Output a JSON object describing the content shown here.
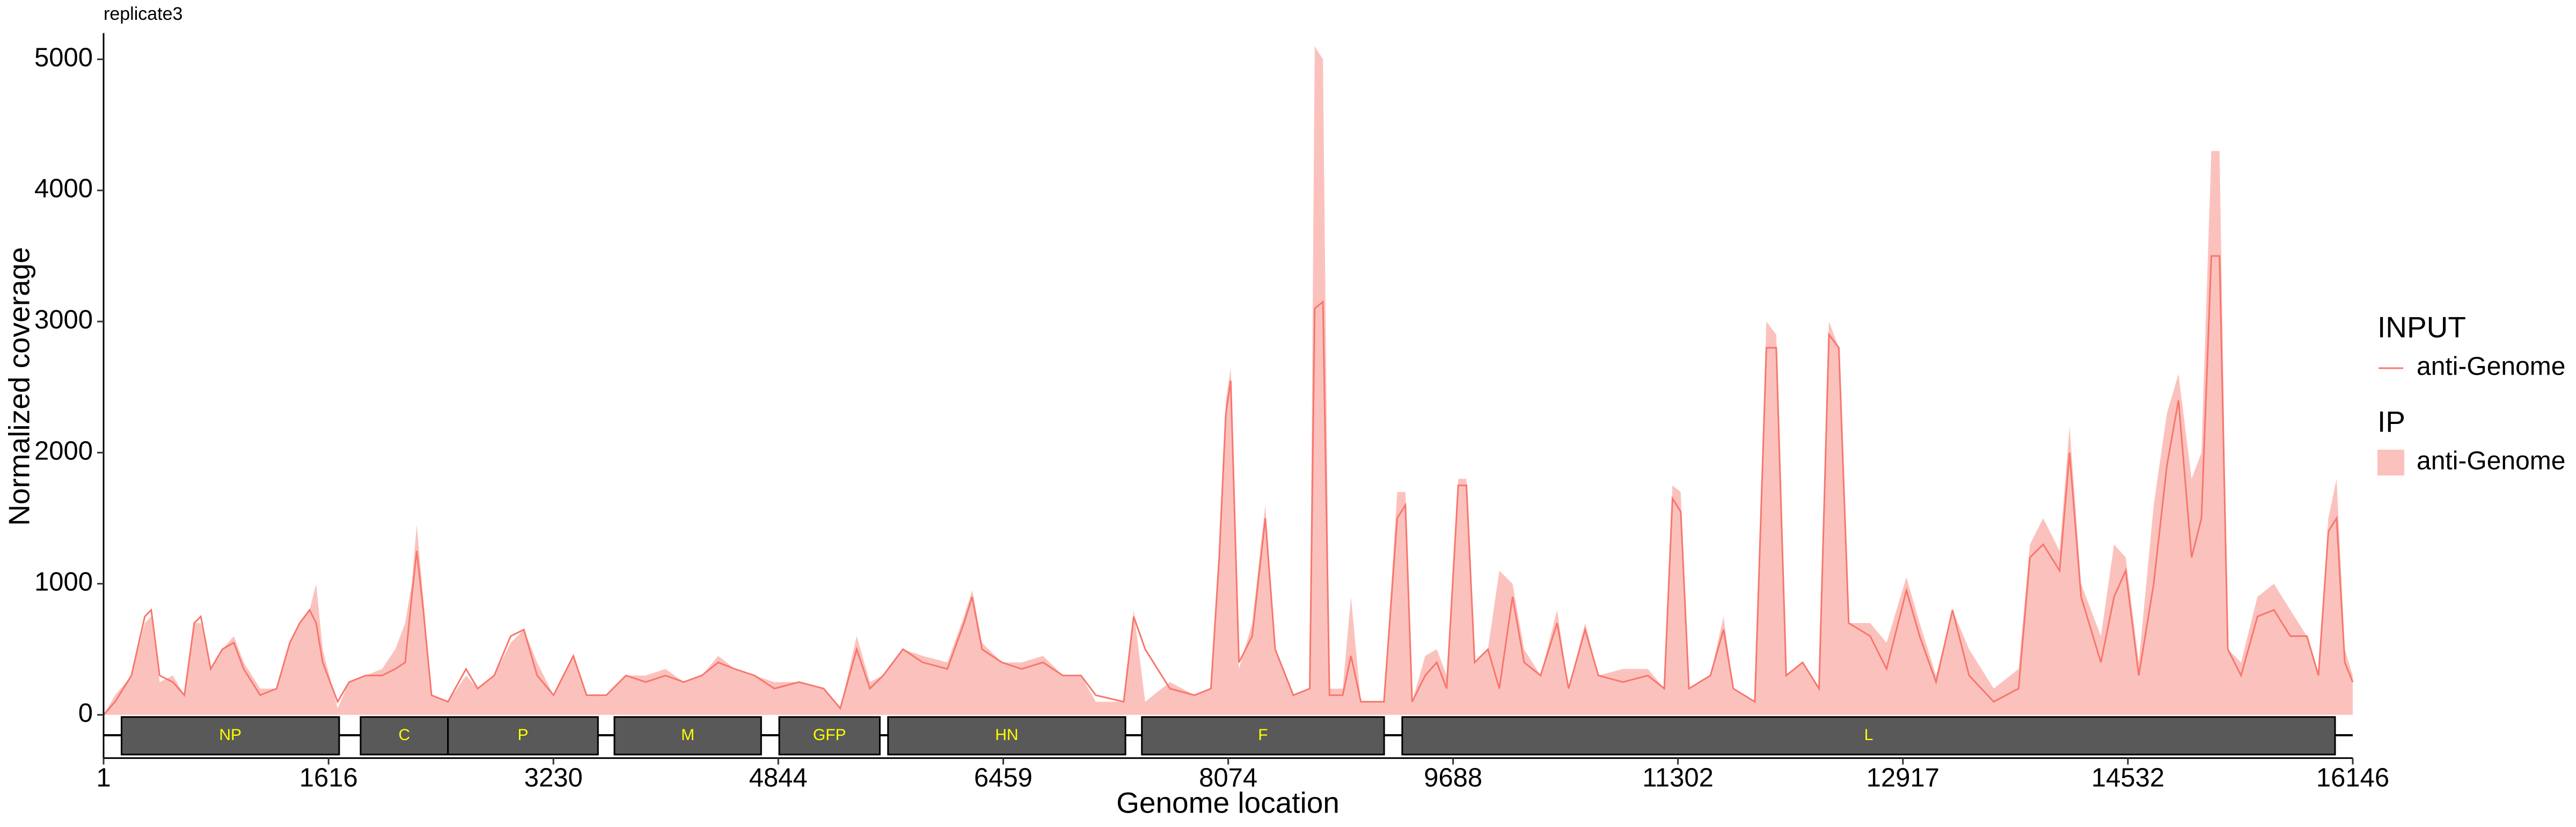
{
  "chart_data": {
    "type": "coverage",
    "title": "replicate3",
    "x_label": "Genome location",
    "y_label": "Normalized coverage",
    "xlim": [
      1,
      16146
    ],
    "xticks": [
      1,
      1616,
      3230,
      4844,
      6459,
      8074,
      9688,
      11302,
      12917,
      14532,
      16146
    ],
    "ylim": [
      -330,
      5200
    ],
    "yticks": [
      0,
      1000,
      2000,
      3000,
      4000,
      5000
    ],
    "x": [
      1,
      84,
      201,
      297,
      343,
      403,
      498,
      581,
      652,
      699,
      770,
      853,
      936,
      1007,
      1125,
      1243,
      1338,
      1409,
      1480,
      1527,
      1574,
      1681,
      1764,
      1882,
      2000,
      2095,
      2166,
      2213,
      2249,
      2296,
      2355,
      2473,
      2603,
      2686,
      2805,
      2923,
      3018,
      3113,
      3231,
      3373,
      3468,
      3610,
      3751,
      3893,
      4035,
      4165,
      4295,
      4413,
      4532,
      4674,
      4816,
      4993,
      5170,
      5289,
      5407,
      5502,
      5597,
      5739,
      5881,
      6058,
      6177,
      6236,
      6307,
      6449,
      6591,
      6745,
      6887,
      7017,
      7123,
      7324,
      7395,
      7478,
      7655,
      7832,
      7950,
      8009,
      8057,
      8092,
      8151,
      8246,
      8340,
      8411,
      8541,
      8659,
      8695,
      8754,
      8801,
      8896,
      8955,
      9026,
      9192,
      9287,
      9346,
      9394,
      9488,
      9571,
      9642,
      9725,
      9784,
      9843,
      9938,
      10020,
      10115,
      10198,
      10316,
      10435,
      10517,
      10636,
      10731,
      10908,
      11086,
      11204,
      11263,
      11322,
      11381,
      11535,
      11629,
      11700,
      11854,
      11937,
      12008,
      12079,
      12197,
      12315,
      12386,
      12457,
      12528,
      12682,
      12800,
      12942,
      13037,
      13155,
      13273,
      13392,
      13569,
      13747,
      13829,
      13924,
      14042,
      14113,
      14196,
      14338,
      14433,
      14516,
      14610,
      14717,
      14812,
      14895,
      14989,
      15060,
      15131,
      15190,
      15249,
      15344,
      15462,
      15580,
      15698,
      15817,
      15900,
      15971,
      16030,
      16089,
      16146
    ],
    "series": [
      {
        "legend_title": "INPUT",
        "name": "anti-Genome",
        "kind": "line",
        "color": "#f8766d",
        "values": [
          0,
          100,
          300,
          750,
          800,
          300,
          250,
          150,
          700,
          750,
          350,
          500,
          550,
          350,
          150,
          200,
          550,
          700,
          800,
          700,
          400,
          100,
          250,
          300,
          300,
          350,
          400,
          900,
          1250,
          800,
          150,
          100,
          350,
          200,
          300,
          600,
          650,
          300,
          150,
          450,
          150,
          150,
          300,
          250,
          300,
          250,
          300,
          400,
          350,
          300,
          200,
          250,
          200,
          50,
          500,
          200,
          300,
          500,
          400,
          350,
          700,
          900,
          500,
          400,
          350,
          400,
          300,
          300,
          150,
          100,
          750,
          500,
          200,
          150,
          200,
          1200,
          2300,
          2550,
          400,
          600,
          1500,
          500,
          150,
          200,
          3100,
          3150,
          150,
          150,
          450,
          100,
          100,
          1500,
          1600,
          100,
          300,
          400,
          200,
          1750,
          1750,
          400,
          500,
          200,
          900,
          400,
          300,
          700,
          200,
          650,
          300,
          250,
          300,
          200,
          1650,
          1550,
          200,
          300,
          650,
          200,
          100,
          2800,
          2800,
          300,
          400,
          200,
          2900,
          2800,
          700,
          600,
          350,
          950,
          600,
          250,
          800,
          300,
          100,
          200,
          1200,
          1300,
          1100,
          2000,
          900,
          400,
          900,
          1100,
          300,
          1000,
          1900,
          2400,
          1200,
          1500,
          3500,
          3500,
          500,
          300,
          750,
          800,
          600,
          600,
          300,
          1400,
          1500,
          400,
          250
        ]
      },
      {
        "legend_title": "IP",
        "name": "anti-Genome",
        "kind": "area",
        "color": "#fbc2bd",
        "values": [
          0,
          150,
          300,
          700,
          750,
          250,
          300,
          150,
          700,
          700,
          350,
          500,
          600,
          400,
          200,
          200,
          550,
          700,
          800,
          1000,
          500,
          50,
          250,
          300,
          350,
          500,
          700,
          1000,
          1450,
          900,
          150,
          100,
          300,
          200,
          300,
          550,
          650,
          400,
          150,
          450,
          150,
          150,
          300,
          300,
          350,
          250,
          300,
          450,
          350,
          300,
          250,
          250,
          200,
          50,
          600,
          250,
          300,
          500,
          450,
          400,
          750,
          950,
          550,
          400,
          400,
          450,
          300,
          300,
          100,
          100,
          800,
          100,
          250,
          150,
          200,
          1200,
          2400,
          2650,
          350,
          700,
          1600,
          500,
          150,
          200,
          5100,
          5000,
          200,
          200,
          900,
          100,
          100,
          1700,
          1700,
          100,
          450,
          500,
          300,
          1800,
          1800,
          400,
          500,
          1100,
          1000,
          500,
          300,
          800,
          200,
          700,
          300,
          350,
          350,
          200,
          1750,
          1700,
          200,
          300,
          750,
          200,
          100,
          3000,
          2900,
          300,
          400,
          200,
          3000,
          2800,
          700,
          700,
          550,
          1050,
          700,
          300,
          800,
          500,
          200,
          350,
          1300,
          1500,
          1250,
          2200,
          1000,
          600,
          1300,
          1200,
          400,
          1600,
          2300,
          2600,
          1800,
          2000,
          4300,
          4300,
          500,
          400,
          900,
          1000,
          800,
          600,
          300,
          1500,
          1800,
          500,
          300
        ]
      }
    ],
    "genes": [
      {
        "name": "NP",
        "start": 130,
        "end": 1692
      },
      {
        "name": "C",
        "start": 1846,
        "end": 2473
      },
      {
        "name": "P",
        "start": 2473,
        "end": 3550
      },
      {
        "name": "M",
        "start": 3668,
        "end": 4721
      },
      {
        "name": "GFP",
        "start": 4851,
        "end": 5573
      },
      {
        "name": "HN",
        "start": 5632,
        "end": 7336
      },
      {
        "name": "F",
        "start": 7454,
        "end": 9193
      },
      {
        "name": "L",
        "start": 9323,
        "end": 16019
      }
    ],
    "gene_color": "#595959",
    "gene_label_color": "#ffff00"
  }
}
